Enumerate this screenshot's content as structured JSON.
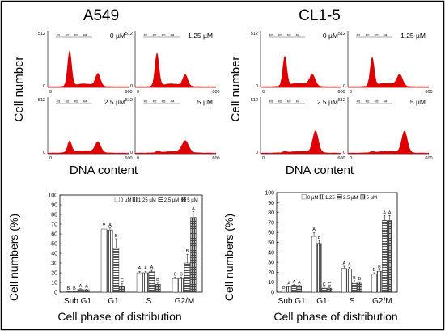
{
  "figure": {
    "panel_titles": [
      "A549",
      "CL1-5"
    ],
    "flow_ylabel": "Cell number",
    "flow_xlabel": "DNA content",
    "flow_ymax_tick": "512",
    "flow_x_ticks": [
      "0",
      "600"
    ],
    "gate_labels": [
      "M1",
      "M2",
      "M3",
      "M4"
    ],
    "doses": [
      "0 µM",
      "1.25 µM",
      "2.5 µM",
      "5 µM"
    ],
    "histogram_color": "#e00000",
    "bar_ylabel": "Cell numbers (%)",
    "bar_xlabel": "Cell phase of distribution"
  },
  "chart_data": [
    {
      "type": "bar",
      "panel": "A549",
      "categories": [
        "Sub G1",
        "G1",
        "S",
        "G2/M"
      ],
      "ylabel": "Cell numbers (%)",
      "xlabel": "Cell phase of distribution",
      "ylim": [
        0,
        100
      ],
      "yticks": [
        0,
        10,
        20,
        30,
        40,
        50,
        60,
        70,
        80,
        90,
        100
      ],
      "legend_position": "top-right",
      "series": [
        {
          "name": "0 µM",
          "pattern": "white",
          "values": [
            0.5,
            65,
            20,
            14
          ],
          "errors": [
            0.2,
            2,
            1.5,
            1.5
          ],
          "letters": [
            "B",
            "A",
            "A",
            "C"
          ]
        },
        {
          "name": "1.25 µM",
          "pattern": "vertical",
          "values": [
            0.6,
            64,
            20,
            14
          ],
          "errors": [
            0.2,
            2,
            1.5,
            1.5
          ],
          "letters": [
            "B",
            "A",
            "A",
            "C"
          ]
        },
        {
          "name": "2.5 µM",
          "pattern": "horizontal",
          "values": [
            3,
            45,
            21,
            30
          ],
          "errors": [
            0.5,
            10,
            1.5,
            9
          ],
          "letters": [
            "A",
            "B",
            "A",
            "B"
          ]
        },
        {
          "name": "5 µM",
          "pattern": "grid",
          "values": [
            2.5,
            6,
            8,
            77
          ],
          "errors": [
            0.5,
            3,
            2,
            6
          ],
          "letters": [
            "A",
            "C",
            "B",
            "A"
          ]
        }
      ]
    },
    {
      "type": "bar",
      "panel": "CL1-5",
      "categories": [
        "Sub G1",
        "G1",
        "S",
        "G2/M"
      ],
      "ylabel": "Cell numbers (%)",
      "xlabel": "Cell phase of distribution",
      "ylim": [
        0,
        100
      ],
      "yticks": [
        0,
        10,
        20,
        30,
        40,
        50,
        60,
        70,
        80,
        90,
        100
      ],
      "legend_position": "top-right",
      "series": [
        {
          "name": "0 µM",
          "pattern": "white",
          "values": [
            1,
            56,
            24,
            18
          ],
          "errors": [
            0.5,
            4,
            2,
            1.5
          ],
          "letters": [
            "B",
            "A",
            "A",
            "B"
          ]
        },
        {
          "name": "1.25",
          "pattern": "vertical",
          "values": [
            5.5,
            49,
            23,
            21
          ],
          "errors": [
            0.5,
            3,
            2,
            1.5
          ],
          "letters": [
            "A",
            "B",
            "A",
            "B"
          ]
        },
        {
          "name": "2.5 µM",
          "pattern": "horizontal",
          "values": [
            7,
            4,
            10,
            72
          ],
          "errors": [
            0.5,
            1,
            1.5,
            5
          ],
          "letters": [
            "A",
            "C",
            "B",
            "A"
          ]
        },
        {
          "name": "5 µM",
          "pattern": "grid",
          "values": [
            6.5,
            4,
            9,
            72
          ],
          "errors": [
            0.5,
            1,
            1.5,
            5
          ],
          "letters": [
            "A",
            "C",
            "B",
            "A"
          ]
        }
      ]
    }
  ]
}
